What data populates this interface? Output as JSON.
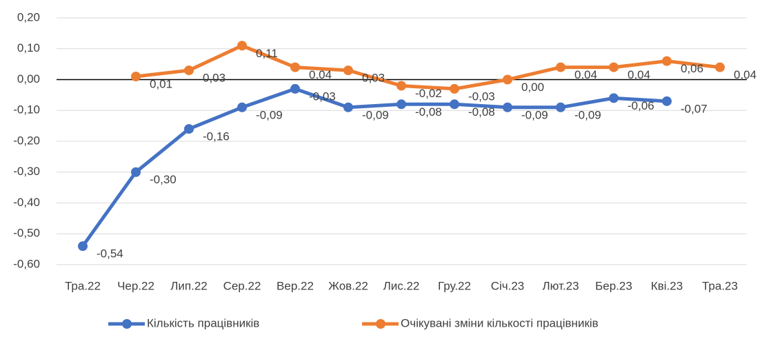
{
  "chart_data": {
    "type": "line",
    "categories": [
      "Тра.22",
      "Чер.22",
      "Лип.22",
      "Сер.22",
      "Вер.22",
      "Жов.22",
      "Лис.22",
      "Гру.22",
      "Січ.23",
      "Лют.23",
      "Бер.23",
      "Кві.23",
      "Тра.23"
    ],
    "series": [
      {
        "name": "Кількість працівників",
        "color": "#4472c4",
        "values": [
          -0.54,
          -0.3,
          -0.16,
          -0.09,
          -0.03,
          -0.09,
          -0.08,
          -0.08,
          -0.09,
          -0.09,
          -0.06,
          -0.07,
          null
        ],
        "value_labels": [
          "-0,54",
          "-0,30",
          "-0,16",
          "-0,09",
          "-0,03",
          "-0,09",
          "-0,08",
          "-0,08",
          "-0,09",
          "-0,09",
          "-0,06",
          "-0,07",
          null
        ]
      },
      {
        "name": "Очікувані зміни кількості працівників",
        "color": "#ed7d31",
        "values": [
          null,
          0.01,
          0.03,
          0.11,
          0.04,
          0.03,
          -0.02,
          -0.03,
          0.0,
          0.04,
          0.04,
          0.06,
          0.04
        ],
        "value_labels": [
          null,
          "0,01",
          "0,03",
          "0,11",
          "0,04",
          "0,03",
          "-0,02",
          "-0,03",
          "0,00",
          "0,04",
          "0,04",
          "0,06",
          "0,04"
        ]
      }
    ],
    "ylim": [
      -0.6,
      0.2
    ],
    "yticks": [
      {
        "value": -0.6,
        "label": "-0,60"
      },
      {
        "value": -0.5,
        "label": "-0,50"
      },
      {
        "value": -0.4,
        "label": "-0,40"
      },
      {
        "value": -0.3,
        "label": "-0,30"
      },
      {
        "value": -0.2,
        "label": "-0,20"
      },
      {
        "value": -0.1,
        "label": "-0,10"
      },
      {
        "value": 0,
        "label": "0,00"
      },
      {
        "value": 0.1,
        "label": "0,10"
      },
      {
        "value": 0.2,
        "label": "0,20"
      }
    ],
    "grid": true,
    "legend": "bottom"
  }
}
